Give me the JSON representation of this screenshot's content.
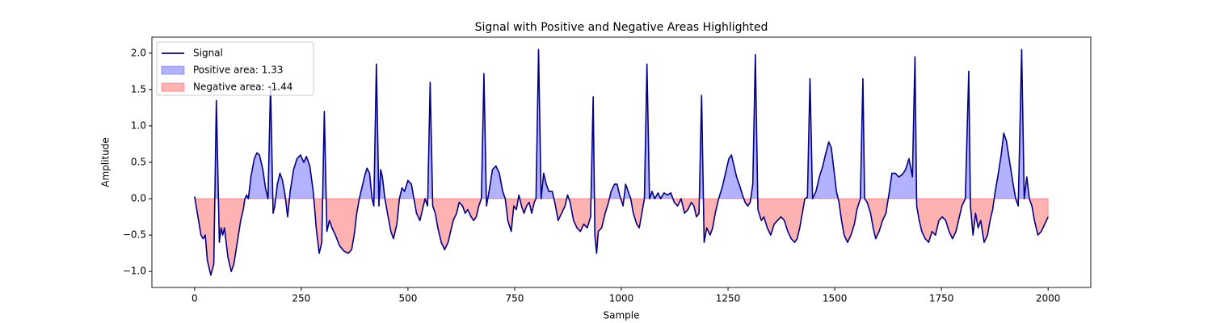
{
  "chart_data": {
    "type": "line",
    "title": "Signal with Positive and Negative Areas Highlighted",
    "x_label": "Sample",
    "y_label": "Amplitude",
    "xlim": [
      -100,
      2100
    ],
    "ylim": [
      -1.22,
      2.22
    ],
    "xticks": [
      0,
      250,
      500,
      750,
      1000,
      1250,
      1500,
      1750,
      2000
    ],
    "yticks": [
      {
        "value": -1.0,
        "label": "−1.0"
      },
      {
        "value": -0.5,
        "label": "−0.5"
      },
      {
        "value": 0.0,
        "label": "0.0"
      },
      {
        "value": 0.5,
        "label": "0.5"
      },
      {
        "value": 1.0,
        "label": "1.0"
      },
      {
        "value": 1.5,
        "label": "1.5"
      },
      {
        "value": 2.0,
        "label": "2.0"
      }
    ],
    "grid": false,
    "legend": "upper left",
    "positive_fill": {
      "name": "Positive area: 1.33",
      "color": "#0000ff",
      "opacity": 0.3
    },
    "negative_fill": {
      "name": "Negative area: -1.44",
      "color": "#ff0000",
      "opacity": 0.3
    },
    "series": [
      {
        "name": "Signal",
        "color": "#00008b",
        "x": [
          0,
          15,
          20,
          25,
          30,
          38,
          45,
          51,
          58,
          62,
          66,
          70,
          78,
          86,
          92,
          100,
          108,
          114,
          118,
          122,
          126,
          132,
          140,
          146,
          152,
          160,
          166,
          172,
          178,
          184,
          188,
          194,
          200,
          206,
          212,
          218,
          224,
          232,
          240,
          248,
          256,
          262,
          270,
          278,
          285,
          292,
          298,
          304,
          310,
          316,
          322,
          330,
          340,
          350,
          360,
          368,
          374,
          380,
          386,
          392,
          398,
          404,
          410,
          416,
          420,
          426,
          432,
          436,
          440,
          446,
          452,
          460,
          466,
          474,
          480,
          486,
          492,
          500,
          508,
          514,
          520,
          528,
          536,
          540,
          546,
          552,
          558,
          564,
          570,
          578,
          586,
          594,
          600,
          606,
          614,
          620,
          628,
          634,
          640,
          648,
          654,
          660,
          666,
          672,
          678,
          684,
          690,
          698,
          706,
          714,
          722,
          728,
          734,
          742,
          748,
          754,
          760,
          766,
          772,
          778,
          784,
          790,
          796,
          800,
          806,
          812,
          818,
          824,
          830,
          838,
          844,
          852,
          860,
          868,
          874,
          880,
          888,
          896,
          904,
          912,
          920,
          928,
          934,
          938,
          942,
          946,
          954,
          962,
          970,
          976,
          984,
          990,
          996,
          1004,
          1010,
          1016,
          1022,
          1028,
          1036,
          1042,
          1048,
          1054,
          1060,
          1066,
          1072,
          1078,
          1086,
          1092,
          1100,
          1108,
          1116,
          1124,
          1132,
          1140,
          1148,
          1156,
          1164,
          1170,
          1176,
          1182,
          1188,
          1194,
          1200,
          1208,
          1214,
          1220,
          1228,
          1236,
          1244,
          1252,
          1258,
          1264,
          1270,
          1276,
          1284,
          1290,
          1296,
          1302,
          1308,
          1314,
          1320,
          1328,
          1334,
          1342,
          1350,
          1358,
          1366,
          1374,
          1382,
          1390,
          1398,
          1406,
          1412,
          1418,
          1424,
          1430,
          1436,
          1442,
          1448,
          1456,
          1464,
          1472,
          1478,
          1486,
          1492,
          1498,
          1504,
          1510,
          1516,
          1522,
          1530,
          1538,
          1546,
          1552,
          1560,
          1566,
          1570,
          1576,
          1584,
          1590,
          1596,
          1604,
          1612,
          1620,
          1628,
          1634,
          1642,
          1650,
          1658,
          1666,
          1674,
          1682,
          1688,
          1692,
          1698,
          1704,
          1712,
          1720,
          1728,
          1736,
          1744,
          1752,
          1760,
          1768,
          1776,
          1784,
          1790,
          1798,
          1806,
          1814,
          1818,
          1824,
          1830,
          1836,
          1842,
          1850,
          1858,
          1864,
          1870,
          1876,
          1882,
          1890,
          1896,
          1902,
          1910,
          1918,
          1924,
          1930,
          1938,
          1944,
          1950,
          1956,
          1962,
          1968,
          1976,
          1984,
          1992,
          2000
        ],
        "values": [
          0.03,
          -0.5,
          -0.55,
          -0.5,
          -0.85,
          -1.05,
          -0.9,
          1.35,
          -0.6,
          -0.4,
          -0.5,
          -0.4,
          -0.8,
          -1.0,
          -0.9,
          -0.6,
          -0.3,
          -0.15,
          0.0,
          0.05,
          0.0,
          0.3,
          0.55,
          0.63,
          0.6,
          0.4,
          0.15,
          0.0,
          1.55,
          -0.2,
          -0.1,
          0.2,
          0.35,
          0.25,
          0.05,
          -0.25,
          0.1,
          0.4,
          0.55,
          0.6,
          0.5,
          0.58,
          0.45,
          0.1,
          -0.4,
          -0.75,
          -0.6,
          1.2,
          -0.45,
          -0.3,
          -0.4,
          -0.5,
          -0.65,
          -0.72,
          -0.75,
          -0.7,
          -0.5,
          -0.2,
          0.0,
          0.15,
          0.3,
          0.42,
          0.35,
          0.0,
          -0.1,
          1.85,
          -0.1,
          0.4,
          0.3,
          0.0,
          -0.2,
          -0.45,
          -0.55,
          -0.35,
          0.0,
          0.15,
          0.1,
          0.25,
          0.2,
          0.0,
          -0.2,
          -0.3,
          -0.1,
          0.0,
          -0.1,
          1.6,
          -0.1,
          -0.2,
          -0.4,
          -0.6,
          -0.7,
          -0.6,
          -0.45,
          -0.3,
          -0.2,
          -0.05,
          -0.1,
          -0.2,
          -0.15,
          -0.25,
          -0.3,
          -0.25,
          -0.1,
          0.0,
          1.72,
          -0.1,
          0.1,
          0.4,
          0.45,
          0.35,
          0.1,
          0.0,
          -0.3,
          -0.45,
          -0.1,
          -0.15,
          0.05,
          -0.1,
          -0.2,
          -0.1,
          -0.05,
          -0.2,
          -0.05,
          0.0,
          2.05,
          0.0,
          0.35,
          0.2,
          0.1,
          0.1,
          -0.05,
          -0.3,
          -0.2,
          -0.1,
          0.05,
          -0.05,
          -0.3,
          -0.4,
          -0.45,
          -0.35,
          -0.4,
          -0.25,
          1.4,
          -0.5,
          -0.75,
          -0.45,
          -0.4,
          -0.2,
          -0.05,
          0.1,
          0.2,
          0.2,
          0.05,
          -0.1,
          0.2,
          0.1,
          0.0,
          -0.2,
          -0.35,
          -0.4,
          -0.2,
          0.0,
          1.85,
          0.0,
          0.1,
          0.0,
          0.08,
          0.0,
          0.08,
          0.05,
          0.08,
          -0.05,
          -0.1,
          0.0,
          -0.2,
          -0.15,
          -0.05,
          -0.1,
          -0.25,
          -0.2,
          1.42,
          -0.6,
          -0.4,
          -0.5,
          -0.4,
          -0.2,
          0.0,
          0.15,
          0.35,
          0.55,
          0.6,
          0.45,
          0.3,
          0.2,
          0.05,
          -0.05,
          -0.1,
          -0.05,
          0.2,
          1.98,
          -0.15,
          -0.3,
          -0.25,
          -0.4,
          -0.5,
          -0.35,
          -0.3,
          -0.25,
          -0.3,
          -0.45,
          -0.55,
          -0.6,
          -0.55,
          -0.4,
          -0.2,
          0.0,
          0.02,
          1.65,
          0.0,
          0.1,
          0.3,
          0.45,
          0.6,
          0.78,
          0.7,
          0.4,
          0.1,
          -0.05,
          -0.3,
          -0.5,
          -0.6,
          -0.5,
          -0.35,
          -0.15,
          0.0,
          1.65,
          0.0,
          -0.05,
          -0.2,
          -0.4,
          -0.55,
          -0.45,
          -0.3,
          -0.2,
          0.1,
          0.35,
          0.35,
          0.3,
          0.33,
          0.4,
          0.55,
          0.3,
          1.95,
          -0.1,
          -0.3,
          -0.45,
          -0.55,
          -0.6,
          -0.45,
          -0.5,
          -0.3,
          -0.25,
          -0.3,
          -0.45,
          -0.55,
          -0.45,
          -0.3,
          -0.1,
          0.0,
          1.75,
          -0.1,
          -0.5,
          -0.2,
          -0.4,
          -0.3,
          -0.6,
          -0.5,
          -0.3,
          -0.15,
          0.1,
          0.3,
          0.6,
          0.9,
          0.8,
          0.5,
          0.2,
          0.0,
          -0.1,
          2.05,
          0.0,
          0.3,
          0.0,
          -0.1,
          -0.3,
          -0.5,
          -0.45,
          -0.35,
          -0.25
        ]
      }
    ]
  }
}
